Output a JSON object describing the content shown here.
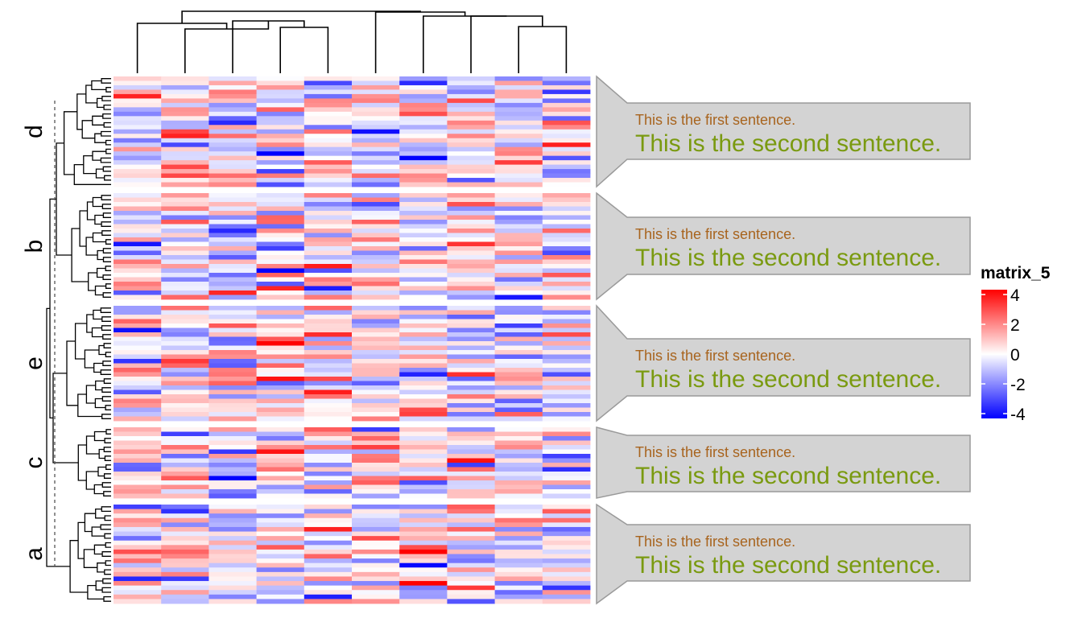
{
  "chart_data": {
    "type": "heatmap",
    "columns": 10,
    "row_slices": [
      {
        "label": "d",
        "rows": 25
      },
      {
        "label": "b",
        "rows": 24
      },
      {
        "label": "e",
        "rows": 26
      },
      {
        "label": "c",
        "rows": 16
      },
      {
        "label": "a",
        "rows": 22
      }
    ],
    "annotation": {
      "first_sentence": "This is the first sentence.",
      "second_sentence": "This is the second sentence.",
      "first_color": "#A8641E",
      "second_color": "#7A9A10",
      "box_fill": "#D3D3D3",
      "box_stroke": "#9A9A9A"
    },
    "legend": {
      "title": "matrix_5",
      "ticks": [
        "4",
        "2",
        "0",
        "-2",
        "-4"
      ],
      "tick_values": [
        4,
        2,
        0,
        -2,
        -4
      ],
      "range": [
        -4,
        4
      ]
    },
    "color_scale": {
      "low": "#0000FF",
      "mid": "#FFFFFF",
      "high": "#FF0000"
    },
    "column_dendrogram": true,
    "row_dendrogram": true
  }
}
